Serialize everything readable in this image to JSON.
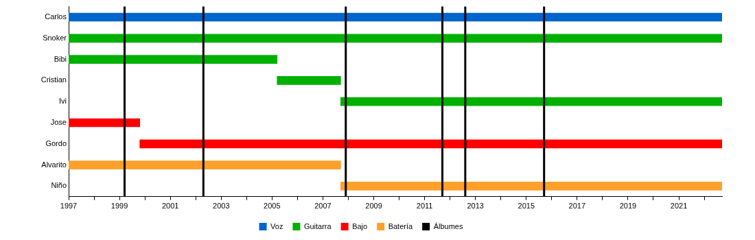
{
  "chart_data": {
    "type": "bar",
    "orientation": "horizontal",
    "categories": [
      "Carlos",
      "Snoker",
      "Bibi",
      "Cristian",
      "Ivi",
      "Jose",
      "Gordo",
      "Alvarito",
      "Niño"
    ],
    "series": [
      {
        "name": "Voz",
        "color": "#0066cc",
        "base": [
          1997,
          null,
          null,
          null,
          null,
          null,
          null,
          null,
          null
        ],
        "values": [
          25.7,
          null,
          null,
          null,
          null,
          null,
          null,
          null,
          null
        ]
      },
      {
        "name": "Guitarra",
        "color": "#00b000",
        "base": [
          null,
          1997,
          1997,
          2005.2,
          2007.7,
          null,
          null,
          null,
          null
        ],
        "values": [
          null,
          25.7,
          8.2,
          2.5,
          15,
          null,
          null,
          null,
          null
        ]
      },
      {
        "name": "Bajo",
        "color": "#ff0000",
        "base": [
          null,
          null,
          null,
          null,
          null,
          1997,
          1999.8,
          null,
          null
        ],
        "values": [
          null,
          null,
          null,
          null,
          null,
          2.8,
          22.9,
          null,
          null
        ]
      },
      {
        "name": "Batería",
        "color": "#ffa02a",
        "base": [
          null,
          null,
          null,
          null,
          null,
          null,
          null,
          1997,
          2007.7
        ],
        "values": [
          null,
          null,
          null,
          null,
          null,
          null,
          null,
          10.7,
          15
        ]
      }
    ],
    "xlim": [
      1997,
      2022.7
    ],
    "xticks": [
      1997,
      {
        "value": 1998,
        "label": null
      },
      1999,
      {
        "value": 2000,
        "label": null
      },
      2001,
      {
        "value": 2002,
        "label": null
      },
      2003,
      {
        "value": 2004,
        "label": null
      },
      2005,
      {
        "value": 2006,
        "label": null
      },
      2007,
      {
        "value": 2008,
        "label": null
      },
      2009,
      {
        "value": 2010,
        "label": null
      },
      2011,
      {
        "value": 2012,
        "label": null
      },
      2013,
      {
        "value": 2014,
        "label": null
      },
      2015,
      {
        "value": 2016,
        "label": null
      },
      2017,
      {
        "value": 2018,
        "label": null
      },
      2019,
      {
        "value": 2020,
        "label": null
      },
      2021,
      {
        "value": 2022,
        "label": null
      }
    ],
    "ref_lines": [
      {
        "axis": "x",
        "value": 1999.2,
        "label": "Álbumes",
        "color": "#000000"
      },
      {
        "axis": "x",
        "value": 2002.3,
        "color": "#000000"
      },
      {
        "axis": "x",
        "value": 2007.9,
        "color": "#000000"
      },
      {
        "axis": "x",
        "value": 2011.7,
        "color": "#000000"
      },
      {
        "axis": "x",
        "value": 2012.6,
        "color": "#000000"
      },
      {
        "axis": "x",
        "value": 2015.7,
        "color": "#000000"
      }
    ],
    "grid": false,
    "legend": "bottom"
  }
}
